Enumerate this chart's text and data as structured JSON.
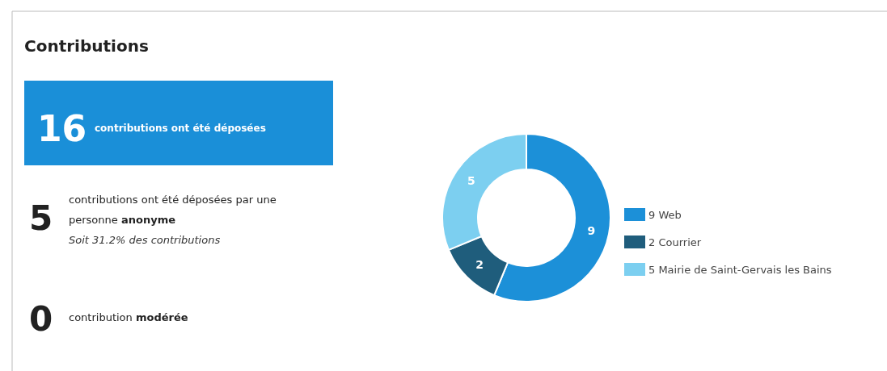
{
  "chart_data": [
    {
      "type": "other",
      "title": "Contributions",
      "annotations": [
        "16",
        "contributions ont été déposées",
        "5",
        "contributions ont été déposées par une",
        "personne",
        "anonyme",
        "Soit 31.2% des contributions",
        "0",
        "contribution",
        "modérée"
      ]
    },
    {
      "type": "donut",
      "categories": [
        "9 Web",
        "2 Courrier",
        "5 Mairie de Saint-Gervais les Bains"
      ],
      "values": [
        9,
        2,
        5
      ],
      "colors": [
        "#1c90d8",
        "#1f5d7c",
        "#7ccff0"
      ],
      "data_labels": true,
      "legend": "right"
    }
  ]
}
